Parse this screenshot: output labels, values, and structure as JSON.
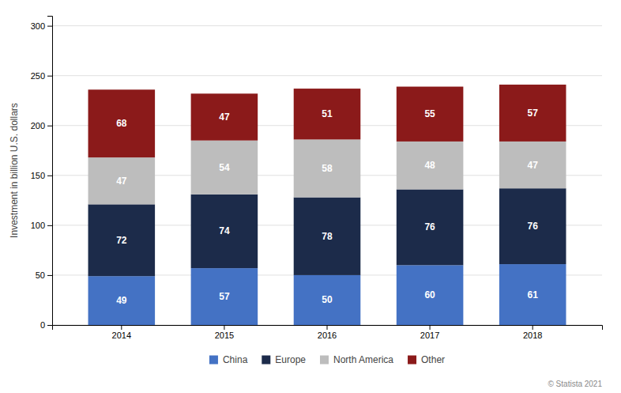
{
  "chart_data": {
    "type": "bar",
    "stacked": true,
    "data_labels": true,
    "grid": true,
    "legend": "bottom",
    "ylabel": "Investment in billion U.S. dollars",
    "categories": [
      "2014",
      "2015",
      "2016",
      "2017",
      "2018"
    ],
    "series": [
      {
        "name": "China",
        "color": "#4472C4",
        "values": [
          49,
          57,
          50,
          60,
          61
        ]
      },
      {
        "name": "Europe",
        "color": "#1C2B4A",
        "values": [
          72,
          74,
          78,
          76,
          76
        ]
      },
      {
        "name": "North America",
        "color": "#BDBDBD",
        "values": [
          47,
          54,
          58,
          48,
          47
        ]
      },
      {
        "name": "Other",
        "color": "#8B1A1A",
        "values": [
          68,
          47,
          51,
          55,
          57
        ]
      }
    ],
    "ylim": [
      0,
      310
    ],
    "yticks": [
      0,
      50,
      100,
      150,
      200,
      250,
      300
    ],
    "annotations": [
      "© Statista 2021"
    ]
  }
}
